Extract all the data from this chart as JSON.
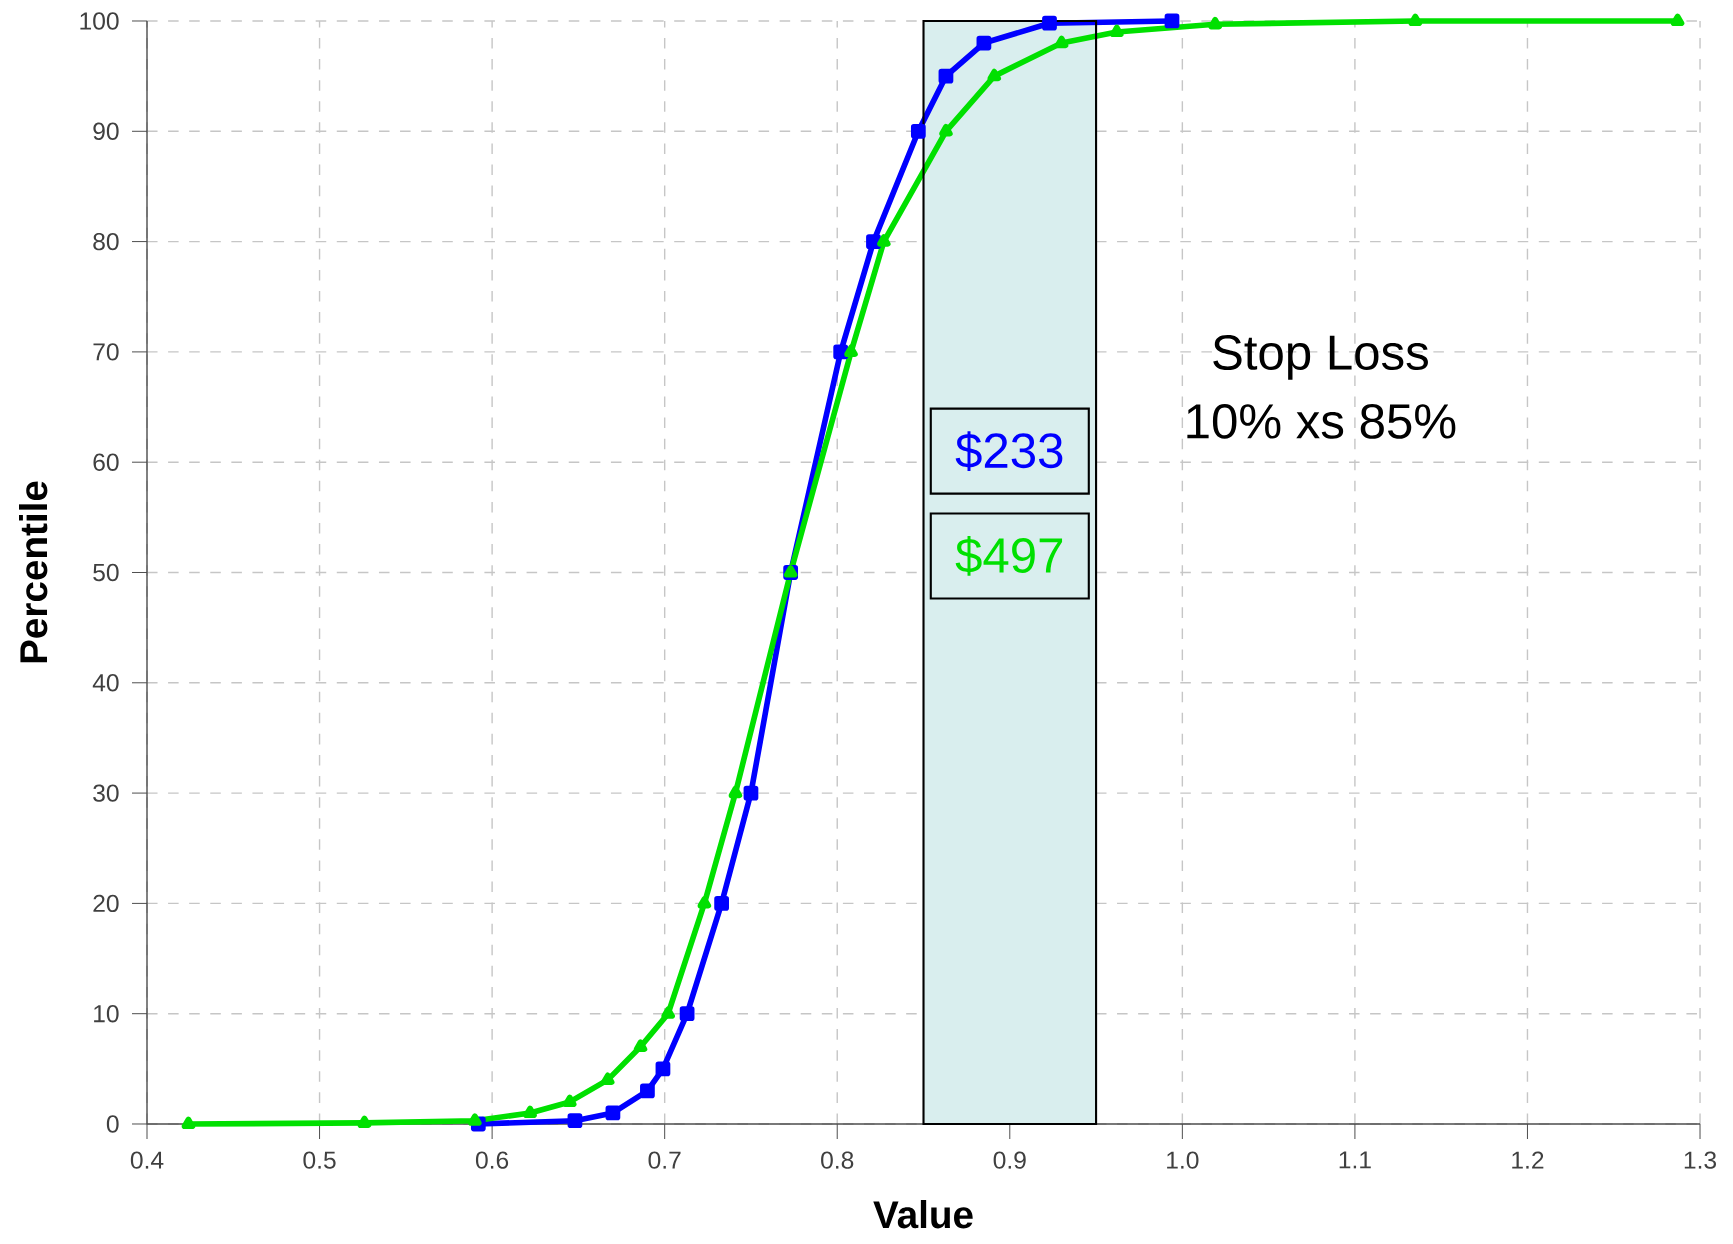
{
  "chart_data": {
    "type": "line",
    "xlabel": "Value",
    "ylabel": "Percentile",
    "xlim": [
      0.4,
      1.3
    ],
    "ylim": [
      0,
      100
    ],
    "xticks": [
      0.4,
      0.5,
      0.6,
      0.7,
      0.8,
      0.9,
      {
        "value": 1.0,
        "label": "1.0"
      },
      1.1,
      1.2,
      1.3
    ],
    "yticks": [
      0,
      10,
      20,
      30,
      40,
      50,
      60,
      70,
      80,
      90,
      100
    ],
    "grid": true,
    "series": [
      {
        "color": "#0000ff",
        "marker": "square",
        "x": [
          0.592,
          0.648,
          0.67,
          0.69,
          0.699,
          0.713,
          0.733,
          0.75,
          0.773,
          0.802,
          0.821,
          0.847,
          0.863,
          0.885,
          0.923,
          0.994
        ],
        "values": [
          0,
          0.3,
          1,
          3,
          5,
          10,
          20,
          30,
          50,
          70,
          80,
          90,
          95,
          98,
          99.8,
          100
        ]
      },
      {
        "color": "#00e000",
        "marker": "triangle",
        "x": [
          0.424,
          0.526,
          0.59,
          0.622,
          0.645,
          0.667,
          0.686,
          0.702,
          0.723,
          0.741,
          0.773,
          0.808,
          0.827,
          0.863,
          0.891,
          0.93,
          0.962,
          1.019,
          1.135,
          1.287
        ],
        "values": [
          0,
          0.1,
          0.3,
          1,
          2,
          4,
          7,
          10,
          20,
          30,
          50,
          70,
          80,
          90,
          95,
          98,
          99,
          99.7,
          100,
          100
        ]
      }
    ],
    "bands": [
      {
        "axis": "x",
        "from": 0.85,
        "to": 0.95,
        "color": "#d9eeee"
      }
    ],
    "annotations": [
      "$233",
      "$497",
      "Stop Loss",
      "10% xs 85%"
    ]
  }
}
